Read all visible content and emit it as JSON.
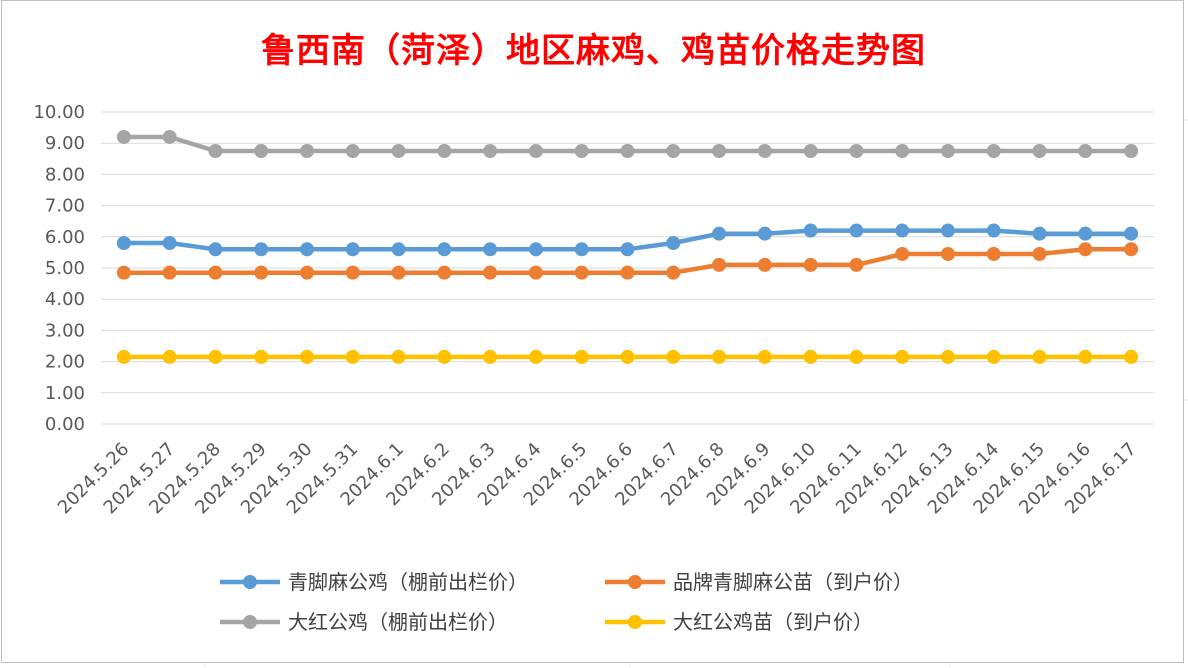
{
  "chart_data": {
    "type": "line",
    "title": "鲁西南（菏泽）地区麻鸡、鸡苗价格走势图",
    "categories": [
      "2024.5.26",
      "2024.5.27",
      "2024.5.28",
      "2024.5.29",
      "2024.5.30",
      "2024.5.31",
      "2024.6.1",
      "2024.6.2",
      "2024.6.3",
      "2024.6.4",
      "2024.6.5",
      "2024.6.6",
      "2024.6.7",
      "2024.6.8",
      "2024.6.9",
      "2024.6.10",
      "2024.6.11",
      "2024.6.12",
      "2024.6.13",
      "2024.6.14",
      "2024.6.15",
      "2024.6.16",
      "2024.6.17"
    ],
    "ylim": [
      0,
      10
    ],
    "y_ticks": [
      "0.00",
      "1.00",
      "2.00",
      "3.00",
      "4.00",
      "5.00",
      "6.00",
      "7.00",
      "8.00",
      "9.00",
      "10.00"
    ],
    "grid": true,
    "legend_position": "bottom",
    "series": [
      {
        "name": "青脚麻公鸡（棚前出栏价）",
        "color": "#5b9bd5",
        "values": [
          5.8,
          5.8,
          5.6,
          5.6,
          5.6,
          5.6,
          5.6,
          5.6,
          5.6,
          5.6,
          5.6,
          5.6,
          5.8,
          6.1,
          6.1,
          6.2,
          6.2,
          6.2,
          6.2,
          6.2,
          6.1,
          6.1,
          6.1
        ]
      },
      {
        "name": "品牌青脚麻公苗（到户价）",
        "color": "#ed7d31",
        "values": [
          4.85,
          4.85,
          4.85,
          4.85,
          4.85,
          4.85,
          4.85,
          4.85,
          4.85,
          4.85,
          4.85,
          4.85,
          4.85,
          5.1,
          5.1,
          5.1,
          5.1,
          5.45,
          5.45,
          5.45,
          5.45,
          5.6,
          5.6
        ]
      },
      {
        "name": "大红公鸡（棚前出栏价）",
        "color": "#a5a5a5",
        "values": [
          9.2,
          9.2,
          8.75,
          8.75,
          8.75,
          8.75,
          8.75,
          8.75,
          8.75,
          8.75,
          8.75,
          8.75,
          8.75,
          8.75,
          8.75,
          8.75,
          8.75,
          8.75,
          8.75,
          8.75,
          8.75,
          8.75,
          8.75
        ]
      },
      {
        "name": "大红公鸡苗（到户价）",
        "color": "#ffc000",
        "values": [
          2.15,
          2.15,
          2.15,
          2.15,
          2.15,
          2.15,
          2.15,
          2.15,
          2.15,
          2.15,
          2.15,
          2.15,
          2.15,
          2.15,
          2.15,
          2.15,
          2.15,
          2.15,
          2.15,
          2.15,
          2.15,
          2.15,
          2.15
        ]
      }
    ]
  }
}
